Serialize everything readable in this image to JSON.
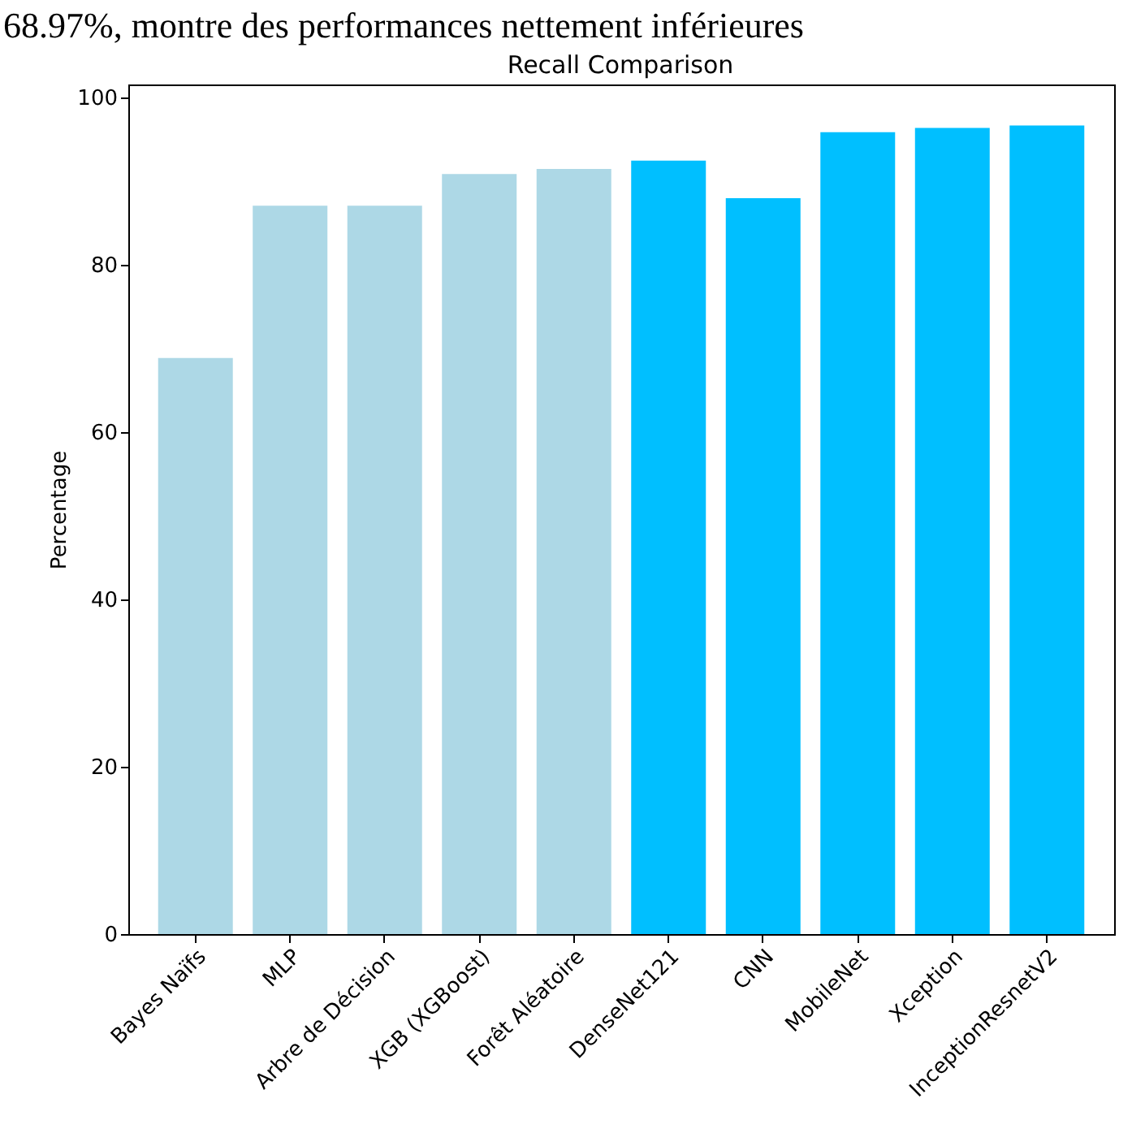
{
  "chart_data": {
    "type": "bar",
    "title": "Recall Comparison",
    "ylabel": "Percentage",
    "annotations": [
      "68.97%, montre des performances nettement inférieures"
    ],
    "categories": [
      "Bayes Naïfs",
      "MLP",
      "Arbre de Décision",
      "XGB (XGBoost)",
      "Forêt Aléatoire",
      "DenseNet121",
      "CNN",
      "MobileNet",
      "Xception",
      "InceptionResnetV2"
    ],
    "values": [
      68.9,
      87.1,
      87.1,
      90.9,
      91.5,
      92.5,
      88.0,
      95.9,
      96.4,
      96.7
    ],
    "colors": [
      "#add8e6",
      "#add8e6",
      "#add8e6",
      "#add8e6",
      "#add8e6",
      "#00bfff",
      "#00bfff",
      "#00bfff",
      "#00bfff",
      "#00bfff"
    ],
    "ylim": [
      0,
      101.6
    ],
    "yticks": [
      0,
      20,
      40,
      60,
      80,
      100
    ],
    "grid": false
  }
}
